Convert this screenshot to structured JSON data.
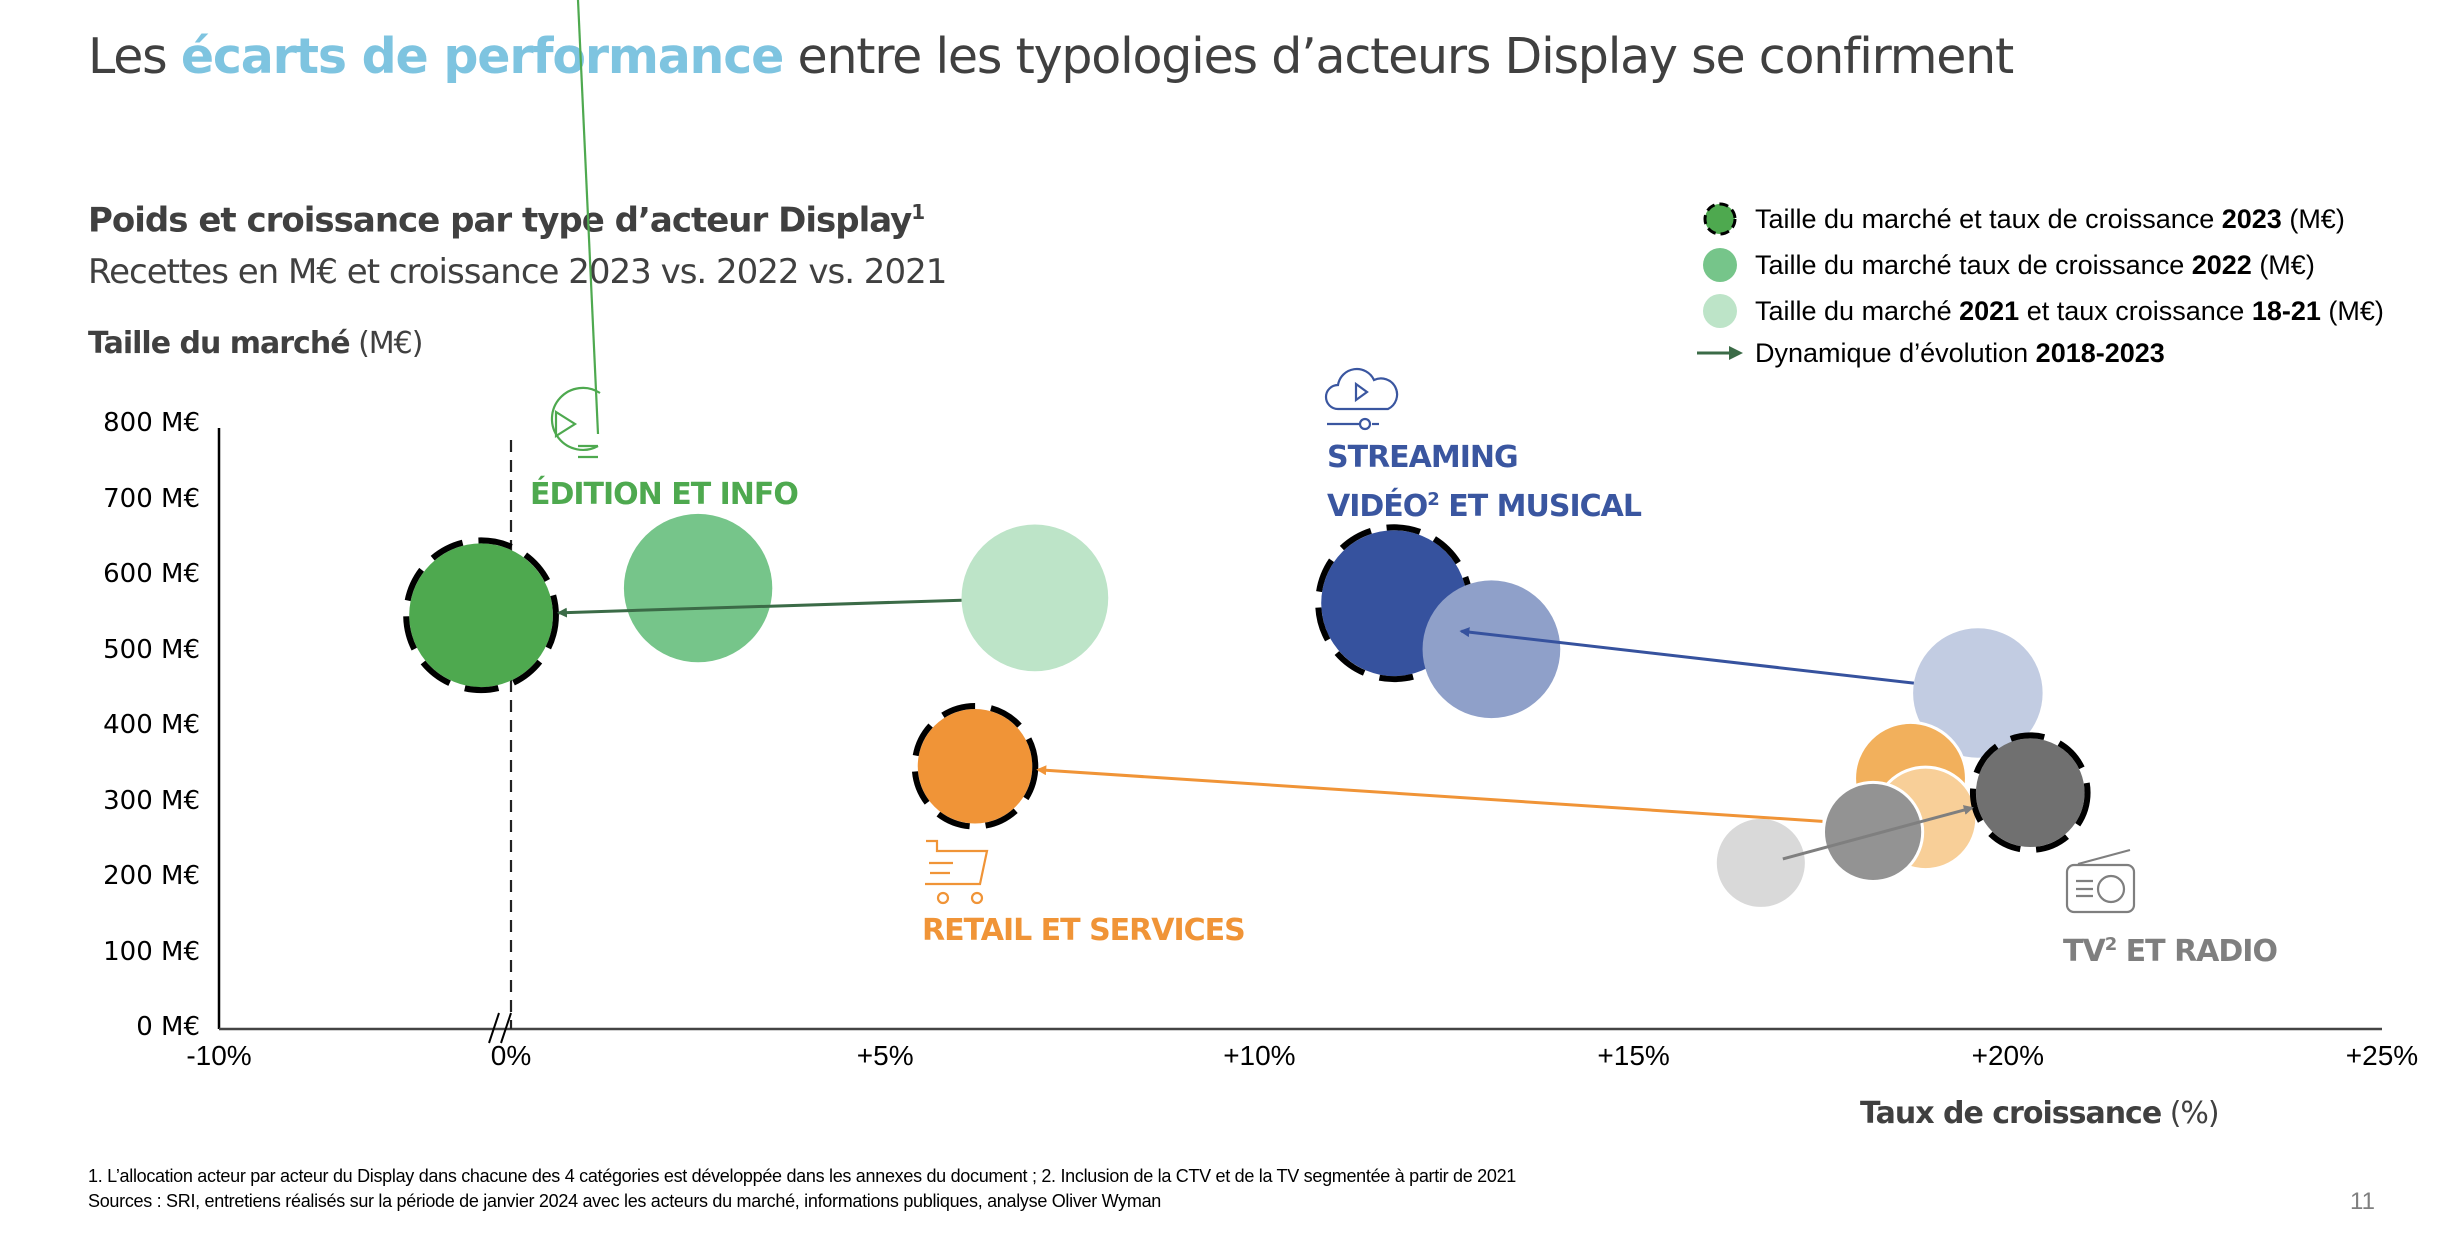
{
  "title": {
    "prefix": "Les ",
    "highlight": "écarts de performance",
    "suffix": " entre les typologies d’acteurs Display se confirment",
    "highlight_color": "#7ec4e0"
  },
  "chart_heading": {
    "title": "Poids et croissance par type d’acteur Display",
    "title_footnote": "1",
    "subtitle": "Recettes en M€ et croissance 2023 vs. 2022 vs. 2021"
  },
  "legend": {
    "items": [
      {
        "text_pre": "Taille du marché et taux de croissance ",
        "text_bold": "2023",
        "text_post": " (M€)",
        "marker": "circle-dashed",
        "color": "#4ea94f"
      },
      {
        "text_pre": "Taille du marché taux de croissance ",
        "text_bold": "2022",
        "text_post": " (M€)",
        "marker": "circle",
        "color": "#76c58a"
      },
      {
        "text_pre": "Taille du marché ",
        "text_bold": "2021",
        "text_mid": " et taux croissance ",
        "text_bold2": "18-21",
        "text_post": " (M€)",
        "marker": "circle",
        "color": "#bde4c8"
      },
      {
        "text_pre": "Dynamique d’évolution ",
        "text_bold": "2018-2023",
        "text_post": "",
        "marker": "arrow",
        "color": "#3b6b47"
      }
    ]
  },
  "categories": [
    {
      "id": "edition",
      "label_lines": [
        "ÉDITION ET INFO"
      ],
      "icon": "video-document-icon",
      "color": "#4ea94f"
    },
    {
      "id": "streaming",
      "label_lines": [
        "STREAMING",
        "VIDÉO",
        "2",
        " ET MUSICAL"
      ],
      "icon": "cloud-play-icon",
      "color": "#3a56a0"
    },
    {
      "id": "retail",
      "label_lines": [
        "RETAIL ET SERVICES"
      ],
      "icon": "shopping-cart-icon",
      "color": "#f09437"
    },
    {
      "id": "tv",
      "label_lines": [
        "TV",
        "2",
        " ET RADIO"
      ],
      "icon": "radio-icon",
      "color": "#7f7f7f"
    }
  ],
  "chart_data": {
    "type": "scatter",
    "subtype": "bubble",
    "title": "Poids et croissance par type d’acteur Display",
    "xlabel": "Taux de croissance",
    "xlabel_unit": " (%)",
    "ylabel": "Taille du marché",
    "ylabel_unit": " (M€)",
    "xlim": [
      -10,
      25
    ],
    "ylim": [
      0,
      800
    ],
    "x_axis_break": [
      -10,
      0
    ],
    "x_ticks": [
      {
        "value": -10,
        "label": "-10%"
      },
      {
        "value": 0,
        "label": "0%"
      },
      {
        "value": 5,
        "label": "+5%"
      },
      {
        "value": 10,
        "label": "+10%"
      },
      {
        "value": 15,
        "label": "+15%"
      },
      {
        "value": 20,
        "label": "+20%"
      },
      {
        "value": 25,
        "label": "+25%"
      }
    ],
    "y_ticks": [
      {
        "value": 0,
        "label": "0 M€"
      },
      {
        "value": 100,
        "label": "100 M€"
      },
      {
        "value": 200,
        "label": "200 M€"
      },
      {
        "value": 300,
        "label": "300 M€"
      },
      {
        "value": 400,
        "label": "400 M€"
      },
      {
        "value": 500,
        "label": "500 M€"
      },
      {
        "value": 600,
        "label": "600 M€"
      },
      {
        "value": 700,
        "label": "700 M€"
      },
      {
        "value": 800,
        "label": "800 M€"
      }
    ],
    "reference_line": {
      "x": 0,
      "style": "dashed"
    },
    "grid": false,
    "legend_position": "top-right",
    "series": [
      {
        "name": "Édition et info",
        "points": [
          {
            "year": "2021",
            "x": 7.0,
            "y": 571,
            "size": 571,
            "color": "#bde4c8"
          },
          {
            "year": "2022",
            "x": 2.5,
            "y": 584,
            "size": 584,
            "color": "#76c58a"
          },
          {
            "year": "2023",
            "x": -0.4,
            "y": 548,
            "size": 548,
            "color": "#4ea94f"
          }
        ],
        "arrow_color": "#3b6b47"
      },
      {
        "name": "Streaming vidéo et musical",
        "points": [
          {
            "year": "2021",
            "x": 19.6,
            "y": 445,
            "size": 445,
            "color": "#c2cce2"
          },
          {
            "year": "2022",
            "x": 13.1,
            "y": 503,
            "size": 503,
            "color": "#8fa0c9"
          },
          {
            "year": "2023",
            "x": 11.8,
            "y": 564,
            "size": 564,
            "color": "#36529e"
          }
        ],
        "arrow_color": "#36529e"
      },
      {
        "name": "Retail et services",
        "points": [
          {
            "year": "2021",
            "x": 18.9,
            "y": 279,
            "size": 279,
            "color": "#f8cf98"
          },
          {
            "year": "2022",
            "x": 18.7,
            "y": 332,
            "size": 332,
            "color": "#f2b05c"
          },
          {
            "year": "2023",
            "x": 6.2,
            "y": 348,
            "size": 348,
            "color": "#f09437"
          }
        ],
        "arrow_color": "#f09437"
      },
      {
        "name": "TV et radio",
        "points": [
          {
            "year": "2021",
            "x": 16.7,
            "y": 220,
            "size": 220,
            "color": "#d9d9d9"
          },
          {
            "year": "2022",
            "x": 18.2,
            "y": 261,
            "size": 261,
            "color": "#939393"
          },
          {
            "year": "2023",
            "x": 20.3,
            "y": 313,
            "size": 313,
            "color": "#707070"
          }
        ],
        "arrow_color": "#7f7f7f"
      }
    ]
  },
  "footnotes": [
    "1. L’allocation acteur par acteur du Display dans chacune des 4 catégories est développée dans les annexes du document ; 2. Inclusion de la CTV et de la TV segmentée à partir de 2021",
    "Sources : SRI, entretiens réalisés sur la période de janvier 2024 avec les acteurs du marché, informations publiques, analyse Oliver Wyman"
  ],
  "page_number": "11"
}
